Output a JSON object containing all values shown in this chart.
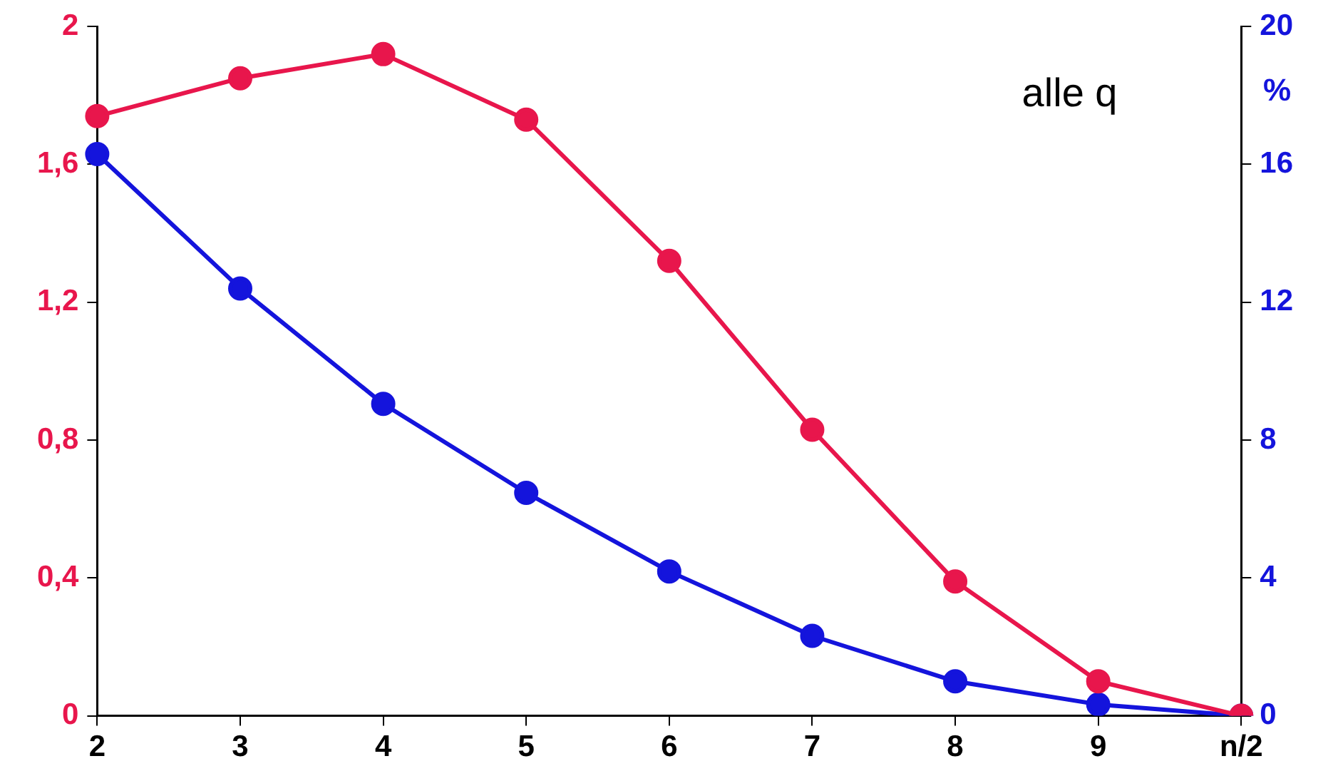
{
  "chart_data": {
    "type": "line",
    "categories": [
      "2",
      "3",
      "4",
      "5",
      "6",
      "7",
      "8",
      "9",
      "n/2"
    ],
    "series": [
      {
        "color": "#e8164c",
        "values": [
          1.74,
          1.85,
          1.92,
          1.73,
          1.32,
          0.83,
          0.39,
          0.1,
          0
        ]
      },
      {
        "color": "#1414dc",
        "axis": "y2",
        "values": [
          16.3,
          12.4,
          9.05,
          6.47,
          4.19,
          2.32,
          1.0,
          0.33,
          0
        ]
      }
    ],
    "ylim": [
      0,
      2
    ],
    "yticks": [
      0,
      {
        "value": 0.4,
        "label": "0,4"
      },
      {
        "value": 0.8,
        "label": "0,8"
      },
      {
        "value": 1.2,
        "label": "1,2"
      },
      {
        "value": 1.6,
        "label": "1,6"
      },
      2
    ],
    "y2lim": [
      0,
      20
    ],
    "y2ticks": [
      0,
      4,
      8,
      12,
      16,
      20
    ],
    "y2label": "%",
    "annotations": [
      "alle q"
    ],
    "grid": false,
    "legend": false,
    "marker": "circle",
    "line_style": "solid"
  }
}
